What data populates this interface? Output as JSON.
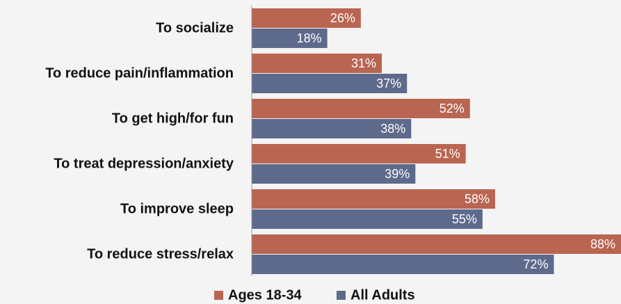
{
  "chart_data": {
    "type": "bar",
    "orientation": "horizontal",
    "categories": [
      "To socialize",
      "To reduce pain/inflammation",
      "To get high/for fun",
      "To treat depression/anxiety",
      "To improve sleep",
      "To reduce stress/relax"
    ],
    "series": [
      {
        "name": "Ages 18-34",
        "color": "#b96552",
        "values": [
          26,
          31,
          52,
          51,
          58,
          88
        ],
        "value_labels": [
          "26%",
          "31%",
          "52%",
          "51%",
          "58%",
          "88%"
        ]
      },
      {
        "name": "All Adults",
        "color": "#5e6a8c",
        "values": [
          18,
          37,
          38,
          39,
          55,
          72
        ],
        "value_labels": [
          "18%",
          "37%",
          "38%",
          "39%",
          "55%",
          "72%"
        ]
      }
    ],
    "legend": "bottom"
  }
}
